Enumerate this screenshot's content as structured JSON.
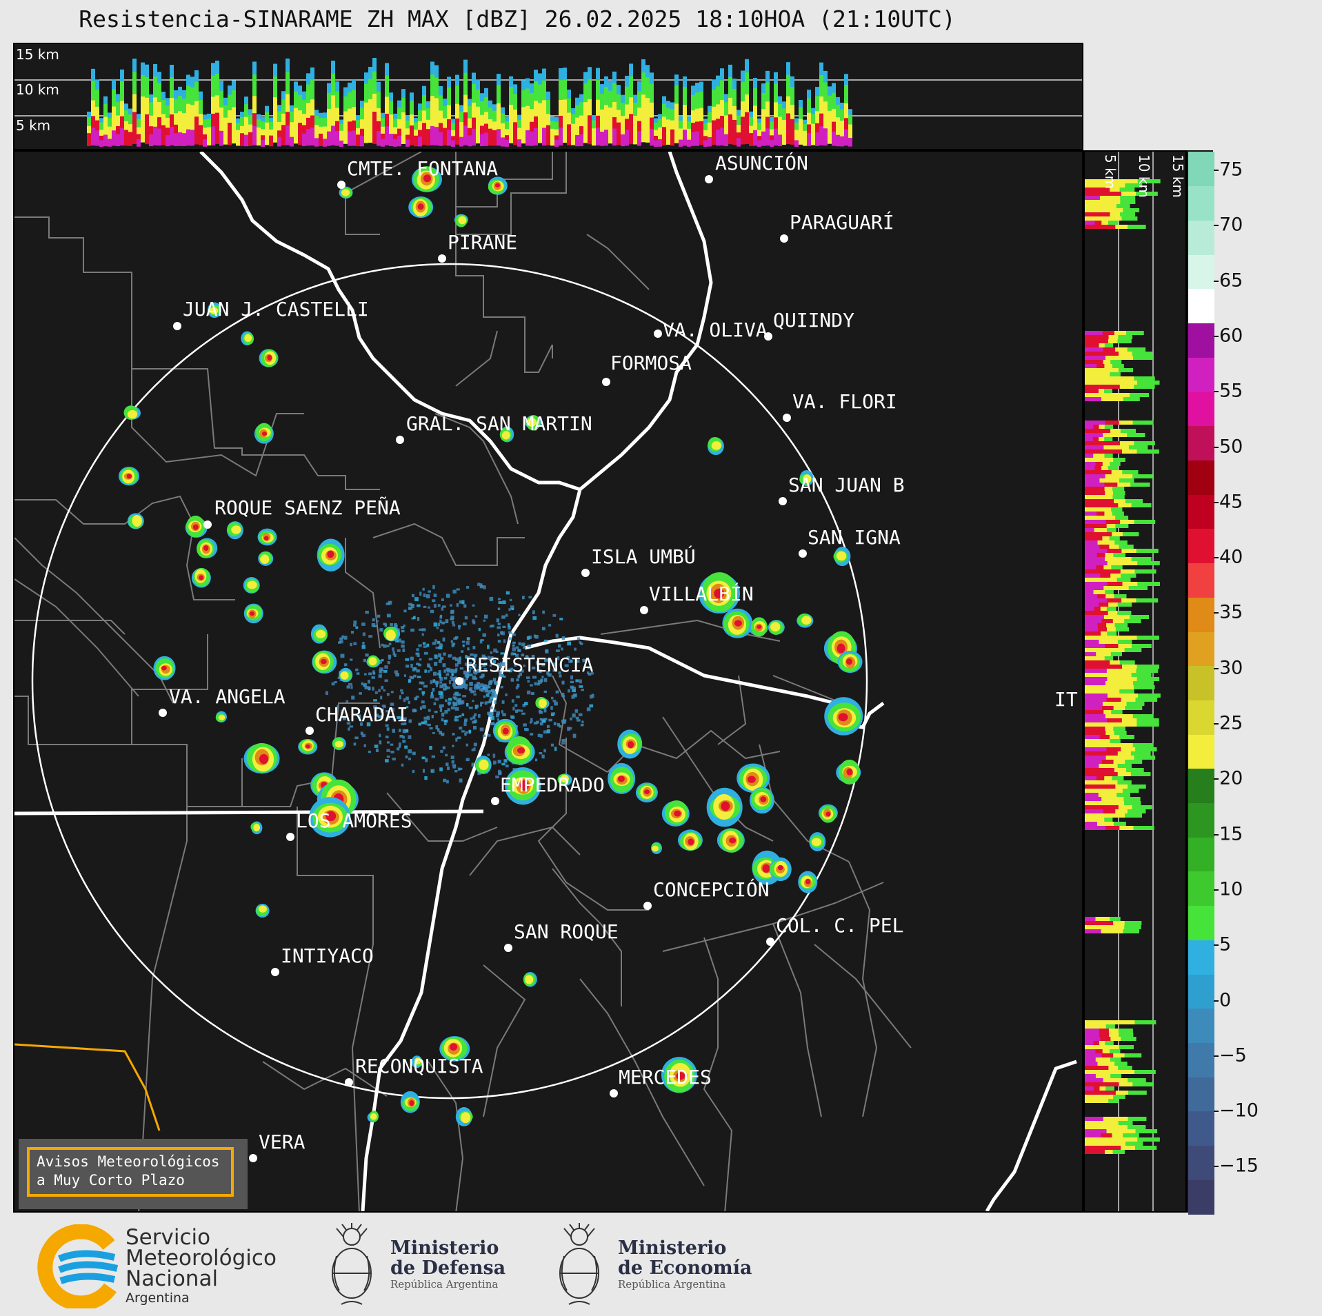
{
  "title": "Resistencia-SINARAME ZH MAX [dBZ] 26.02.2025 18:10HOA (21:10UTC)",
  "top_panel": {
    "height_labels": [
      "15 km",
      "10 km",
      "5 km"
    ]
  },
  "side_panel": {
    "height_labels": [
      "5 km",
      "10 km",
      "15 km"
    ]
  },
  "colorbar": {
    "unit": "dBZ",
    "ticks": [
      "75",
      "70",
      "65",
      "60",
      "55",
      "50",
      "45",
      "40",
      "35",
      "30",
      "25",
      "20",
      "15",
      "10",
      "5",
      "0",
      "−5",
      "−10",
      "−15"
    ],
    "colors": [
      "#3b3d66",
      "#3e4a78",
      "#3f5a8a",
      "#3f6a9a",
      "#3f7aab",
      "#3c8bbb",
      "#2f9fd0",
      "#2fb0e0",
      "#46e33a",
      "#3ec92f",
      "#33b026",
      "#2c9620",
      "#267e1c",
      "#f3ee3c",
      "#d9d730",
      "#c9c128",
      "#e0a020",
      "#e08a18",
      "#f04040",
      "#e01030",
      "#c00020",
      "#a00010",
      "#c0105a",
      "#e010a0",
      "#d020c0",
      "#a010a0",
      "#ffffff",
      "#d8f5ea",
      "#b8ecd8",
      "#98e2c8",
      "#80d8b8"
    ]
  },
  "cities": [
    {
      "name": "CMTE. FONTANA"
    },
    {
      "name": "ASUNCIÓN"
    },
    {
      "name": "PARAGUARÍ"
    },
    {
      "name": "PIRANE"
    },
    {
      "name": "JUAN J. CASTELLI"
    },
    {
      "name": "VA. OLIVA"
    },
    {
      "name": "QUIINDY"
    },
    {
      "name": "FORMOSA"
    },
    {
      "name": "VA. FLORI"
    },
    {
      "name": "GRAL. SAN MARTIN"
    },
    {
      "name": "SAN JUAN B"
    },
    {
      "name": "ROQUE SAENZ PEÑA"
    },
    {
      "name": "SAN IGNA"
    },
    {
      "name": "ISLA UMBÚ"
    },
    {
      "name": "VILLALBÍN"
    },
    {
      "name": "RESISTENCIA"
    },
    {
      "name": "VA. ANGELA"
    },
    {
      "name": "CHARADAI"
    },
    {
      "name": "IT"
    },
    {
      "name": "EMPEDRADO"
    },
    {
      "name": "LOS AMORES"
    },
    {
      "name": "CONCEPCIÓN"
    },
    {
      "name": "COL. C. PEL"
    },
    {
      "name": "SAN ROQUE"
    },
    {
      "name": "INTIYACO"
    },
    {
      "name": "RECONQUISTA"
    },
    {
      "name": "MERCEDES"
    },
    {
      "name": "VERA"
    }
  ],
  "notice": {
    "line1": "Avisos Meteorológicos",
    "line2": "a Muy Corto Plazo"
  },
  "footer": {
    "smn": {
      "line1": "Servicio",
      "line2": "Meteorológico",
      "line3": "Nacional",
      "line4": "Argentina"
    },
    "defensa": {
      "line1": "Ministerio",
      "line2": "de Defensa",
      "sub": "República Argentina"
    },
    "economia": {
      "line1": "Ministerio",
      "line2": "de Economía",
      "sub": "República Argentina"
    }
  }
}
